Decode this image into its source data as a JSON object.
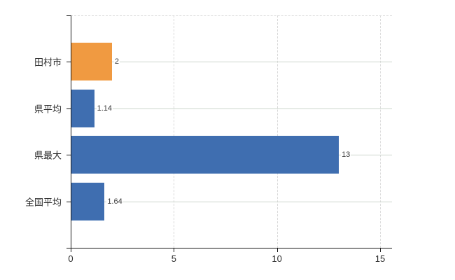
{
  "chart_data": {
    "type": "bar",
    "orientation": "horizontal",
    "title": "",
    "categories": [
      "田村市",
      "県平均",
      "県最大",
      "全国平均"
    ],
    "values": [
      2,
      1.14,
      13,
      1.64
    ],
    "value_labels": [
      "2",
      "1.14",
      "13",
      "1.64"
    ],
    "bar_colors": [
      "#f09a41",
      "#3f6eb0",
      "#3f6eb0",
      "#3f6eb0"
    ],
    "x_ticks": [
      0,
      5,
      10,
      15
    ],
    "x_tick_labels": [
      "0",
      "5",
      "10",
      "15"
    ],
    "xlim": [
      0,
      15.6
    ],
    "grid": {
      "vertical_gridlines": true,
      "horizontal_gridlines": true,
      "top_border_dashed": true
    },
    "legend_position": "none"
  },
  "colors": {
    "background": "#ffffff",
    "axis": "#1a1a1a",
    "vertical_gridline": "#d9d9d9",
    "horizontal_gridline": "#ccd6cc",
    "bar_orange": "#f09a41",
    "bar_blue": "#3f6eb0",
    "category_text": "#2b2b2b",
    "value_text": "#3a3a3a"
  }
}
